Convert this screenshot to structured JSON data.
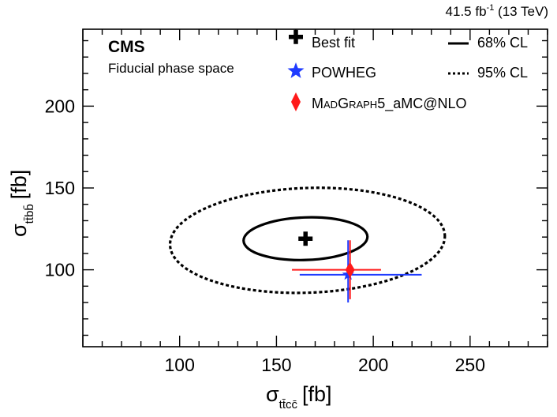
{
  "lumi": {
    "main": "41.5 fb",
    "sup": "-1",
    "energy": " (13 TeV)"
  },
  "experiment": "CMS",
  "region": "Fiducial phase space",
  "colors": {
    "axis": "#000000",
    "powheg": "#1f3bff",
    "madgraph": "#ff1a1a",
    "contour": "#000000"
  },
  "chart_data": {
    "type": "scatter",
    "title": "",
    "xlabel": {
      "sigma": "σ",
      "sub": "tt̄cc̄",
      "unit": "[fb]"
    },
    "ylabel": {
      "sigma": "σ",
      "sub": "tt̄bb̄",
      "unit": "[fb]"
    },
    "xlim": [
      50,
      290
    ],
    "ylim": [
      53,
      247
    ],
    "xticks": [
      100,
      150,
      200,
      250
    ],
    "yticks": [
      100,
      150,
      200
    ],
    "grid": false,
    "legend_position": "top",
    "best_fit": {
      "label": "Best fit",
      "x": 165,
      "y": 119
    },
    "contours": [
      {
        "label": "68% CL",
        "style": "solid",
        "center_x": 165,
        "center_y": 119,
        "semi_x": 32,
        "semi_y": 13,
        "rotation_deg": -2
      },
      {
        "label": "95% CL",
        "style": "dotted",
        "center_x": 166,
        "center_y": 118,
        "semi_x": 71,
        "semi_y": 32,
        "rotation_deg": -2
      }
    ],
    "series": [
      {
        "name": "POWHEG",
        "marker": "star",
        "x": 187,
        "y": 97,
        "x_err": [
          25,
          38
        ],
        "y_err": [
          17,
          21
        ]
      },
      {
        "name": "MadGraph5_aMC@NLO",
        "marker": "diamond",
        "x": 188,
        "y": 100,
        "x_err": [
          30,
          16
        ],
        "y_err": [
          18,
          18
        ]
      }
    ],
    "legend": {
      "best_fit": "Best fit",
      "powheg": "POWHEG",
      "madgraph": {
        "p1": "M",
        "p2": "AD",
        "p3": "G",
        "p4": "RAPH",
        "p5": "5_aMC@NLO"
      },
      "cl68": "68% CL",
      "cl95": "95% CL"
    }
  }
}
